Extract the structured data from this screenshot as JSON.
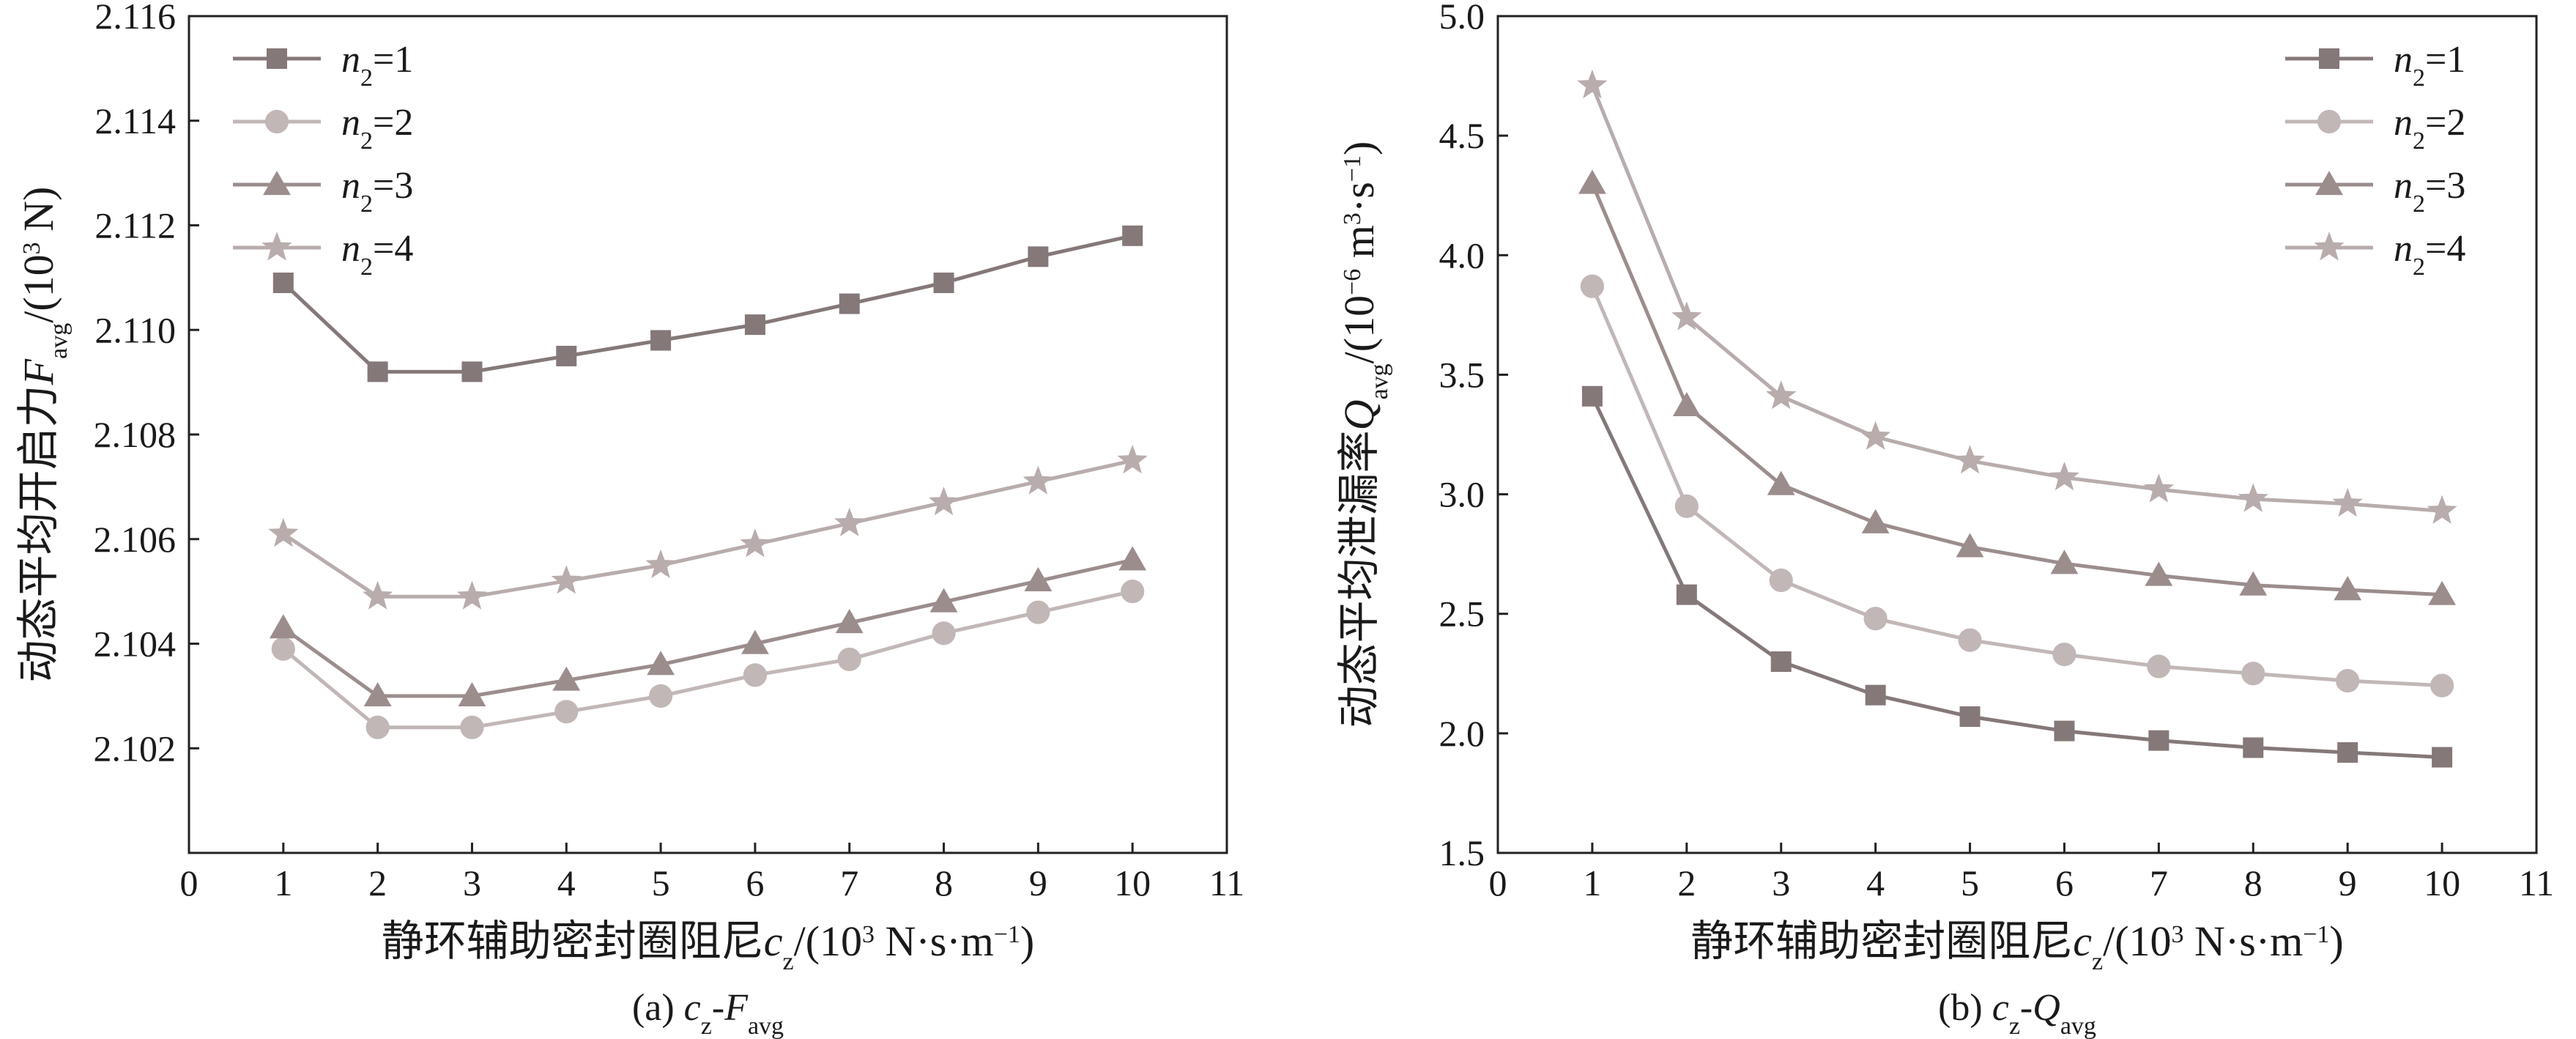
{
  "chart_data": [
    {
      "type": "line",
      "caption_prefix": "(a) ",
      "caption_var": "c",
      "caption_var_sub": "z",
      "caption_sep": "-",
      "caption_var2": "F",
      "caption_var2_sub": "avg",
      "xlabel_text": "静环辅助密封圈阻尼",
      "xlabel_var": "c",
      "xlabel_var_sub": "z",
      "xlabel_unit_open": "/(10",
      "xlabel_unit_exp": "3",
      "xlabel_unit_mid": " N·s·m",
      "xlabel_unit_exp2": "−1",
      "xlabel_unit_close": ")",
      "ylabel_text": "动态平均开启力",
      "ylabel_var": "F",
      "ylabel_var_sub": "avg",
      "ylabel_unit_open": "/(10",
      "ylabel_unit_exp": "3",
      "ylabel_unit_close": " N)",
      "xlim": [
        0,
        11
      ],
      "ylim": [
        2.1,
        2.116
      ],
      "xticks": [
        "0",
        "1",
        "2",
        "3",
        "4",
        "5",
        "6",
        "7",
        "8",
        "9",
        "10",
        "11"
      ],
      "yticks": [
        "2.102",
        "2.104",
        "2.106",
        "2.108",
        "2.110",
        "2.112",
        "2.114",
        "2.116"
      ],
      "legend_position": "top-left",
      "x": [
        1,
        2,
        3,
        4,
        5,
        6,
        7,
        8,
        9,
        10
      ],
      "series": [
        {
          "name": "n2=1",
          "label_var": "n",
          "label_sub": "2",
          "label_rest": "=1",
          "marker": "square",
          "color": "#857878",
          "values": [
            2.1109,
            2.1092,
            2.1092,
            2.1095,
            2.1098,
            2.1101,
            2.1105,
            2.1109,
            2.1114,
            2.1118
          ]
        },
        {
          "name": "n2=2",
          "label_var": "n",
          "label_sub": "2",
          "label_rest": "=2",
          "marker": "circle",
          "color": "#c2b7b7",
          "values": [
            2.1039,
            2.1024,
            2.1024,
            2.1027,
            2.103,
            2.1034,
            2.1037,
            2.1042,
            2.1046,
            2.105
          ]
        },
        {
          "name": "n2=3",
          "label_var": "n",
          "label_sub": "2",
          "label_rest": "=3",
          "marker": "triangle",
          "color": "#9c8d8d",
          "values": [
            2.1043,
            2.103,
            2.103,
            2.1033,
            2.1036,
            2.104,
            2.1044,
            2.1048,
            2.1052,
            2.1056
          ]
        },
        {
          "name": "n2=4",
          "label_var": "n",
          "label_sub": "2",
          "label_rest": "=4",
          "marker": "star",
          "color": "#b8acac",
          "values": [
            2.1061,
            2.1049,
            2.1049,
            2.1052,
            2.1055,
            2.1059,
            2.1063,
            2.1067,
            2.1071,
            2.1075
          ]
        }
      ]
    },
    {
      "type": "line",
      "caption_prefix": "(b) ",
      "caption_var": "c",
      "caption_var_sub": "z",
      "caption_sep": "-",
      "caption_var2": "Q",
      "caption_var2_sub": "avg",
      "xlabel_text": "静环辅助密封圈阻尼",
      "xlabel_var": "c",
      "xlabel_var_sub": "z",
      "xlabel_unit_open": "/(10",
      "xlabel_unit_exp": "3",
      "xlabel_unit_mid": " N·s·m",
      "xlabel_unit_exp2": "−1",
      "xlabel_unit_close": ")",
      "ylabel_text": "动态平均泄漏率",
      "ylabel_var": "Q",
      "ylabel_var_sub": "avg",
      "ylabel_unit_open": "/(10",
      "ylabel_unit_exp": "−6",
      "ylabel_unit_mid": " m",
      "ylabel_unit_exp2": "3",
      "ylabel_unit_mid2": "·s",
      "ylabel_unit_exp3": "−1",
      "ylabel_unit_close": ")",
      "xlim": [
        0,
        11
      ],
      "ylim": [
        1.5,
        5.0
      ],
      "xticks": [
        "0",
        "1",
        "2",
        "3",
        "4",
        "5",
        "6",
        "7",
        "8",
        "9",
        "10",
        "11"
      ],
      "yticks": [
        "1.5",
        "2.0",
        "2.5",
        "3.0",
        "3.5",
        "4.0",
        "4.5",
        "5.0"
      ],
      "legend_position": "top-right",
      "x": [
        1,
        2,
        3,
        4,
        5,
        6,
        7,
        8,
        9,
        10
      ],
      "series": [
        {
          "name": "n2=1",
          "label_var": "n",
          "label_sub": "2",
          "label_rest": "=1",
          "marker": "square",
          "color": "#857878",
          "values": [
            3.41,
            2.58,
            2.3,
            2.16,
            2.07,
            2.01,
            1.97,
            1.94,
            1.92,
            1.9
          ]
        },
        {
          "name": "n2=2",
          "label_var": "n",
          "label_sub": "2",
          "label_rest": "=2",
          "marker": "circle",
          "color": "#c2b7b7",
          "values": [
            3.87,
            2.95,
            2.64,
            2.48,
            2.39,
            2.33,
            2.28,
            2.25,
            2.22,
            2.2
          ]
        },
        {
          "name": "n2=3",
          "label_var": "n",
          "label_sub": "2",
          "label_rest": "=3",
          "marker": "triangle",
          "color": "#9c8d8d",
          "values": [
            4.3,
            3.37,
            3.04,
            2.88,
            2.78,
            2.71,
            2.66,
            2.62,
            2.6,
            2.58
          ]
        },
        {
          "name": "n2=4",
          "label_var": "n",
          "label_sub": "2",
          "label_rest": "=4",
          "marker": "star",
          "color": "#b8acac",
          "values": [
            4.71,
            3.74,
            3.41,
            3.24,
            3.14,
            3.07,
            3.02,
            2.98,
            2.96,
            2.93
          ]
        }
      ]
    }
  ]
}
